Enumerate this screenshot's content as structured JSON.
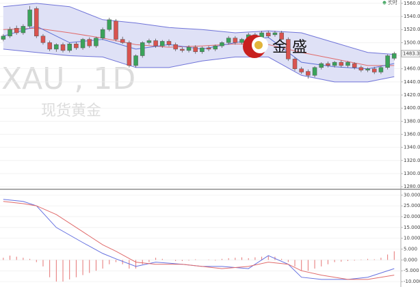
{
  "header": {
    "realtime": "实时"
  },
  "watermark": {
    "symbol": "XAU , 1D",
    "name": "现货黄金",
    "brand": "金 盛"
  },
  "chart_data": [
    {
      "type": "candlestick",
      "xlim": [
        -0.5,
        60
      ],
      "ylim": [
        1276,
        1563
      ],
      "yticks": [
        {
          "value": 1280,
          "label": "1280.00"
        },
        {
          "value": 1300,
          "label": "1300.00"
        },
        {
          "value": 1320,
          "label": "1320.00"
        },
        {
          "value": 1340,
          "label": "1340.00"
        },
        {
          "value": 1360,
          "label": "1360.00"
        },
        {
          "value": 1380,
          "label": "1380.00"
        },
        {
          "value": 1400,
          "label": "1400.00"
        },
        {
          "value": 1420,
          "label": "1420.00"
        },
        {
          "value": 1440,
          "label": "1440.00"
        },
        {
          "value": 1460,
          "label": "1460.00"
        },
        {
          "value": 1480,
          "label": "1480.00"
        },
        {
          "value": 1500,
          "label": "1500.00"
        },
        {
          "value": 1520,
          "label": "1520.00"
        },
        {
          "value": 1540,
          "label": "1540.00"
        },
        {
          "value": 1560,
          "label": "1560.00"
        }
      ],
      "up_color": "#3aa35a",
      "down_color": "#d9534f",
      "open": [
        1505,
        1510,
        1522,
        1515,
        1525,
        1552,
        1510,
        1500,
        1490,
        1497,
        1488,
        1498,
        1492,
        1505,
        1495,
        1507,
        1520,
        1533,
        1505,
        1500,
        1465,
        1480,
        1500,
        1503,
        1495,
        1502,
        1497,
        1490,
        1488,
        1493,
        1486,
        1492,
        1490,
        1495,
        1500,
        1507,
        1500,
        1505,
        1512,
        1505,
        1515,
        1512,
        1515,
        1505,
        1475,
        1460,
        1456,
        1450,
        1462,
        1468,
        1465,
        1470,
        1465,
        1468,
        1462,
        1458,
        1460,
        1455,
        1462,
        1476
      ],
      "high": [
        1513,
        1524,
        1526,
        1528,
        1556,
        1555,
        1513,
        1503,
        1499,
        1500,
        1500,
        1501,
        1507,
        1508,
        1509,
        1523,
        1538,
        1536,
        1509,
        1503,
        1482,
        1502,
        1506,
        1506,
        1504,
        1505,
        1500,
        1493,
        1496,
        1496,
        1494,
        1495,
        1497,
        1502,
        1510,
        1510,
        1507,
        1515,
        1515,
        1518,
        1518,
        1518,
        1518,
        1508,
        1478,
        1463,
        1459,
        1464,
        1470,
        1471,
        1472,
        1473,
        1472,
        1470,
        1465,
        1462,
        1463,
        1464,
        1482,
        1486
      ],
      "low": [
        1502,
        1507,
        1512,
        1512,
        1522,
        1507,
        1497,
        1487,
        1486,
        1485,
        1485,
        1489,
        1489,
        1492,
        1492,
        1504,
        1517,
        1502,
        1498,
        1462,
        1462,
        1477,
        1497,
        1492,
        1492,
        1494,
        1487,
        1485,
        1485,
        1483,
        1483,
        1487,
        1487,
        1492,
        1497,
        1497,
        1497,
        1502,
        1502,
        1502,
        1507,
        1509,
        1502,
        1472,
        1457,
        1452,
        1445,
        1447,
        1459,
        1462,
        1462,
        1462,
        1462,
        1459,
        1455,
        1455,
        1452,
        1452,
        1459,
        1473
      ],
      "close": [
        1510,
        1520,
        1515,
        1525,
        1550,
        1510,
        1500,
        1490,
        1497,
        1488,
        1498,
        1492,
        1505,
        1495,
        1507,
        1520,
        1535,
        1505,
        1500,
        1465,
        1480,
        1500,
        1503,
        1495,
        1502,
        1497,
        1490,
        1488,
        1493,
        1486,
        1492,
        1490,
        1495,
        1500,
        1507,
        1500,
        1505,
        1512,
        1505,
        1515,
        1510,
        1515,
        1505,
        1475,
        1460,
        1455,
        1450,
        1462,
        1468,
        1465,
        1470,
        1465,
        1470,
        1462,
        1458,
        1460,
        1455,
        1462,
        1480,
        1483.3
      ],
      "band_fill": "#dfe1f6",
      "band_upper": {
        "color": "#6f73d8",
        "x": [
          0,
          5,
          10,
          15,
          20,
          25,
          30,
          35,
          40,
          45,
          50,
          55,
          59
        ],
        "values": [
          1555,
          1560,
          1555,
          1535,
          1530,
          1523,
          1520,
          1515,
          1518,
          1515,
          1500,
          1485,
          1482
        ]
      },
      "band_lower": {
        "color": "#6f73d8",
        "x": [
          0,
          5,
          10,
          15,
          20,
          25,
          30,
          35,
          40,
          45,
          50,
          55,
          59
        ],
        "values": [
          1490,
          1485,
          1480,
          1478,
          1462,
          1462,
          1472,
          1478,
          1478,
          1450,
          1440,
          1440,
          1448
        ]
      },
      "ma_lines": [
        {
          "color": "#e06a6a",
          "x": [
            0,
            5,
            10,
            15,
            20,
            25,
            30,
            35,
            40,
            45,
            50,
            55,
            59
          ],
          "values": [
            1520,
            1522,
            1515,
            1507,
            1497,
            1493,
            1495,
            1498,
            1497,
            1485,
            1475,
            1465,
            1465
          ]
        },
        {
          "color": "#5b6fd6",
          "x": [
            0,
            5,
            10,
            15,
            20,
            25,
            30,
            35,
            40,
            45,
            50,
            55,
            59
          ],
          "values": [
            1510,
            1525,
            1500,
            1505,
            1490,
            1497,
            1490,
            1500,
            1508,
            1470,
            1463,
            1460,
            1468
          ]
        }
      ],
      "price_tag": {
        "value": 1483.3,
        "label": "1483.30"
      }
    },
    {
      "type": "macd",
      "xlim": [
        -0.5,
        60
      ],
      "ylim": [
        -12.5,
        32
      ],
      "yticks": [
        {
          "value": -10,
          "label": "-10.000"
        },
        {
          "value": -5,
          "label": "-5.000"
        },
        {
          "value": 0,
          "label": "0.000"
        },
        {
          "value": 5,
          "label": "5.000"
        },
        {
          "value": 10,
          "label": "10.000"
        },
        {
          "value": 15,
          "label": "15.000"
        },
        {
          "value": 20,
          "label": "20.000"
        },
        {
          "value": 25,
          "label": "25.000"
        },
        {
          "value": 30,
          "label": "30.000"
        }
      ],
      "lines": [
        {
          "color": "#6470e0",
          "x": [
            0,
            3,
            5,
            8,
            12,
            15,
            17,
            20,
            23,
            27,
            30,
            33,
            37,
            40,
            43,
            45,
            48,
            52,
            55,
            59
          ],
          "values": [
            28,
            27,
            25,
            15,
            8,
            3,
            0.5,
            -3,
            -1,
            -2,
            -3,
            -3,
            -4,
            2,
            -2,
            -8,
            -9,
            -9,
            -8,
            -4
          ]
        },
        {
          "color": "#e06a6a",
          "x": [
            0,
            3,
            5,
            8,
            12,
            15,
            17,
            20,
            23,
            27,
            30,
            33,
            37,
            40,
            43,
            45,
            48,
            52,
            55,
            59
          ],
          "values": [
            27,
            26,
            25,
            21,
            13,
            7,
            4,
            -1,
            -2,
            -2,
            -3,
            -4,
            -3,
            -1,
            -2,
            -5,
            -7,
            -9,
            -9,
            -7
          ]
        }
      ],
      "histogram": {
        "color": "#e57373",
        "values": [
          1,
          2,
          1.5,
          1,
          0.5,
          -1,
          -3,
          -8,
          -10,
          -10,
          -9,
          -8,
          -7,
          -6,
          -5,
          -4,
          -2,
          -1,
          -2,
          -4,
          -4,
          -2,
          -1,
          1,
          0.5,
          0,
          -0.5,
          -0.5,
          -0.3,
          0.3,
          0,
          0.2,
          -0.3,
          0.5,
          0.8,
          1,
          1.2,
          0.8,
          1.2,
          1.5,
          2,
          1.5,
          0.5,
          -1,
          -3,
          -5,
          -5,
          -4,
          -3,
          -2,
          -1,
          -0.8,
          -0.5,
          -0.3,
          0.2,
          0.5,
          0.3,
          1,
          2.5,
          4
        ]
      }
    }
  ]
}
